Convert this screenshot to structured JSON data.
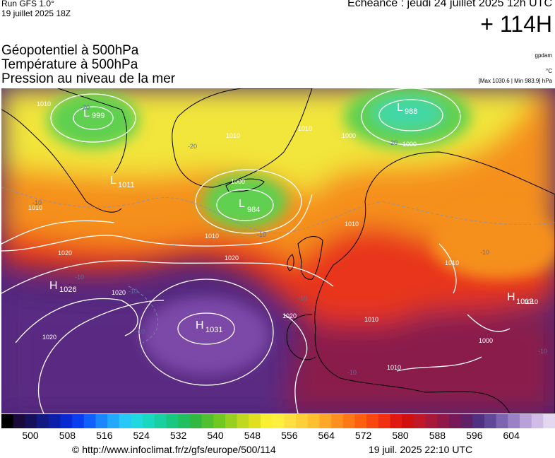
{
  "header": {
    "run": "Run GFS 1.0°",
    "run_date": "19 juillet 2025 18Z",
    "echeance": "Echéance : jeudi 24 juillet 2025 12h UTC",
    "lead_time": "+ 114H"
  },
  "titles": {
    "line1": "Géopotentiel à 500hPa",
    "line2": "Température à 500hPa",
    "line3": "Pression au niveau de la mer"
  },
  "units": {
    "geopotential": "gpdam",
    "temperature": "°C",
    "pressure_extremes": "[Max 1030.6 | Min 983.9] hPa"
  },
  "pressure_centers": [
    {
      "type": "L",
      "value": "999"
    },
    {
      "type": "L",
      "value": "988"
    },
    {
      "type": "L",
      "value": "1011"
    },
    {
      "type": "L",
      "value": "984"
    },
    {
      "type": "H",
      "value": "1026"
    },
    {
      "type": "H",
      "value": "1031"
    },
    {
      "type": "H",
      "value": "1012"
    }
  ],
  "isobar_labels": [
    "1010",
    "1010",
    "1010",
    "1000",
    "1000",
    "1000",
    "1010",
    "1010",
    "1020",
    "1020",
    "1020",
    "1020",
    "1010",
    "1010",
    "1010",
    "1000",
    "1010",
    "1010",
    "1020"
  ],
  "temperature_labels": [
    "-20",
    "-20",
    "-20",
    "-10",
    "-10",
    "-10",
    "-10",
    "-10",
    "-10",
    "-10",
    "-10",
    "-10"
  ],
  "colorbar": {
    "colors": [
      "#000000",
      "#1a0a3a",
      "#15105a",
      "#101a80",
      "#0a20a8",
      "#0828d0",
      "#0a3cf0",
      "#1060ff",
      "#1c86ff",
      "#22a8ff",
      "#28c8f8",
      "#20d8e0",
      "#18d8c0",
      "#18d0a0",
      "#18c880",
      "#20c060",
      "#30b840",
      "#50c030",
      "#70c820",
      "#98d020",
      "#c0d820",
      "#e0e020",
      "#f8f030",
      "#fff040",
      "#ffe040",
      "#ffd038",
      "#ffc030",
      "#ffa828",
      "#ff9020",
      "#ff7818",
      "#ff6010",
      "#f84810",
      "#f03010",
      "#e01810",
      "#d01010",
      "#c01828",
      "#a81838",
      "#901848",
      "#781858",
      "#602068",
      "#503080",
      "#604898",
      "#7c64b0",
      "#9a80c4",
      "#b8a0d8",
      "#d0bce6",
      "#e4d8f0"
    ],
    "ticks": [
      "500",
      "508",
      "516",
      "524",
      "532",
      "540",
      "548",
      "556",
      "564",
      "572",
      "580",
      "588",
      "596",
      "604"
    ]
  },
  "footer": {
    "url": "© http://www.infoclimat.fr/z/gfs/europe/500/114",
    "timestamp": "19 juil. 2025 22:10 UTC"
  },
  "field_colors": {
    "low_green": "#5fd050",
    "low_teal": "#40d8a8",
    "yellow": "#f2e53a",
    "orange": "#f5901c",
    "red": "#e8341c",
    "ridge_purple": "#5a2a82",
    "subtropic_violet": "#4a2478"
  }
}
